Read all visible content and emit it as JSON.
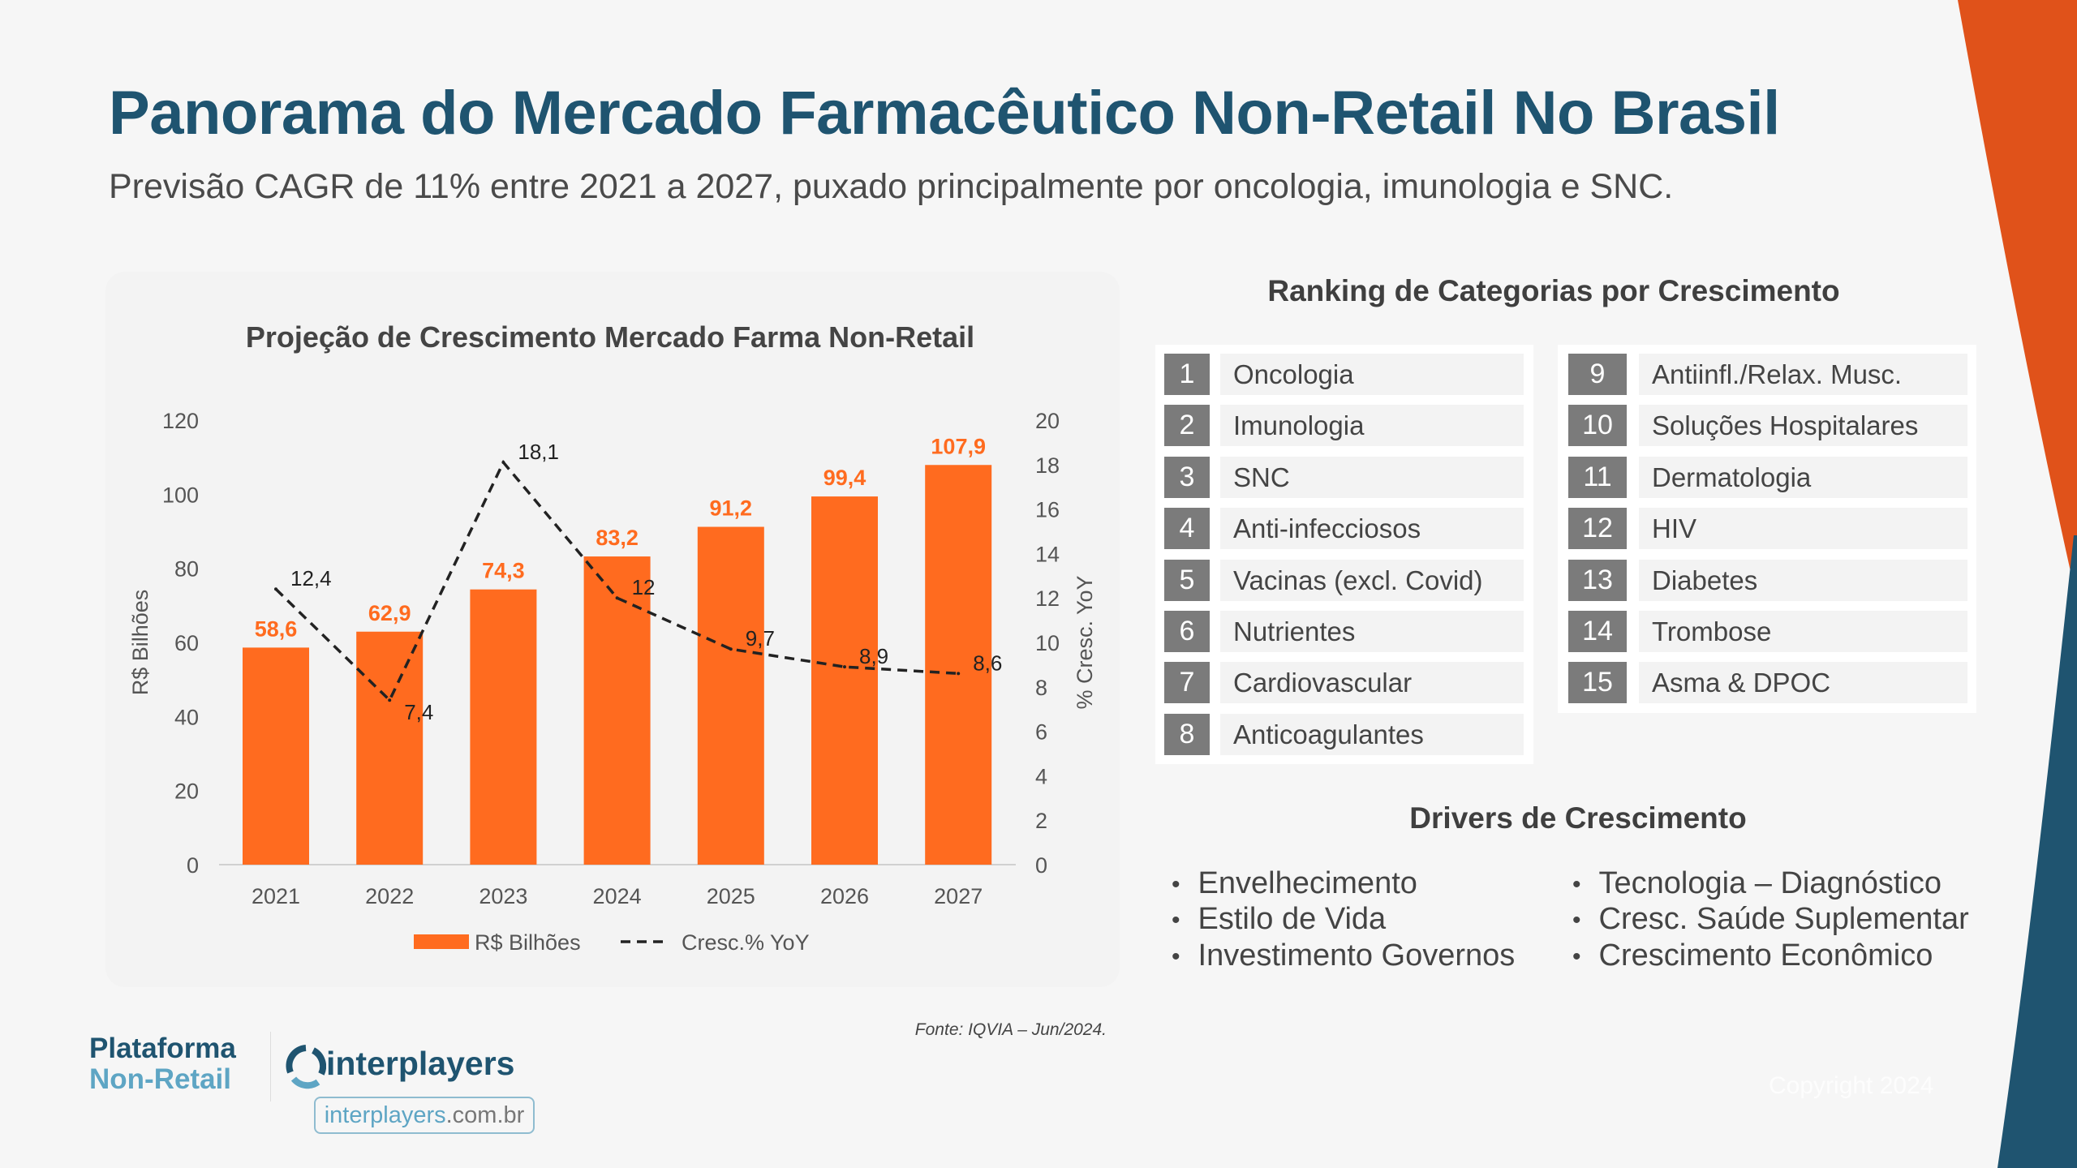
{
  "header": {
    "title": "Panorama do Mercado Farmacêutico Non-Retail No Brasil",
    "subtitle": "Previsão CAGR de 11% entre 2021 a 2027, puxado principalmente por oncologia, imunologia e SNC."
  },
  "colors": {
    "brand_blue": "#1f5470",
    "accent_orange": "#ff6b1f",
    "light_blue": "#5ea5c4"
  },
  "chart_data": {
    "type": "bar+line",
    "title": "Projeção de Crescimento Mercado Farma Non-Retail",
    "categories": [
      "2021",
      "2022",
      "2023",
      "2024",
      "2025",
      "2026",
      "2027"
    ],
    "series": [
      {
        "name": "R$ Bilhões",
        "type": "bar",
        "axis": "left",
        "values": [
          58.6,
          62.9,
          74.3,
          83.2,
          91.2,
          99.4,
          107.9
        ],
        "labels": [
          "58,6",
          "62,9",
          "74,3",
          "83,2",
          "91,2",
          "99,4",
          "107,9"
        ],
        "color": "#ff6b1f"
      },
      {
        "name": "Cresc.% YoY",
        "type": "line",
        "style": "dashed",
        "axis": "right",
        "values": [
          12.4,
          7.4,
          18.1,
          12,
          9.7,
          8.9,
          8.6
        ],
        "labels": [
          "12,4",
          "7,4",
          "18,1",
          "12",
          "9,7",
          "8,9",
          "8,6"
        ],
        "color": "#222222"
      }
    ],
    "ylabel": "R$ Bilhões",
    "y2label": "% Cresc. YoY",
    "ylim": [
      0,
      120
    ],
    "y2lim": [
      0,
      20
    ],
    "yticks": [
      "0",
      "20",
      "40",
      "60",
      "80",
      "100",
      "120"
    ],
    "y2ticks": [
      "0",
      "2",
      "4",
      "6",
      "8",
      "10",
      "12",
      "14",
      "16",
      "18",
      "20"
    ],
    "grid": false,
    "legend": "bottom"
  },
  "ranking": {
    "title": "Ranking de Categorias por Crescimento",
    "items": [
      {
        "n": "1",
        "label": "Oncologia"
      },
      {
        "n": "2",
        "label": "Imunologia"
      },
      {
        "n": "3",
        "label": "SNC"
      },
      {
        "n": "4",
        "label": "Anti-infecciosos"
      },
      {
        "n": "5",
        "label": "Vacinas (excl. Covid)"
      },
      {
        "n": "6",
        "label": "Nutrientes"
      },
      {
        "n": "7",
        "label": "Cardiovascular"
      },
      {
        "n": "8",
        "label": "Anticoagulantes"
      },
      {
        "n": "9",
        "label": "Antiinfl./Relax. Musc."
      },
      {
        "n": "10",
        "label": "Soluções Hospitalares"
      },
      {
        "n": "11",
        "label": "Dermatologia"
      },
      {
        "n": "12",
        "label": "HIV"
      },
      {
        "n": "13",
        "label": "Diabetes"
      },
      {
        "n": "14",
        "label": "Trombose"
      },
      {
        "n": "15",
        "label": "Asma & DPOC"
      }
    ]
  },
  "drivers": {
    "title": "Drivers de Crescimento",
    "items": [
      "Envelhecimento",
      "Estilo de Vida",
      "Investimento Governos",
      "Tecnologia – Diagnóstico",
      "Cresc. Saúde Suplementar",
      "Crescimento Econômico"
    ]
  },
  "footer": {
    "source": "Fonte: IQVIA – Jun/2024.",
    "platform_line1": "Plataforma",
    "platform_line2": "Non-Retail",
    "logo_text": "interplayers",
    "url_main": "interplayers",
    "url_suffix": ".com.br",
    "copyright": "Copyright 2024"
  }
}
